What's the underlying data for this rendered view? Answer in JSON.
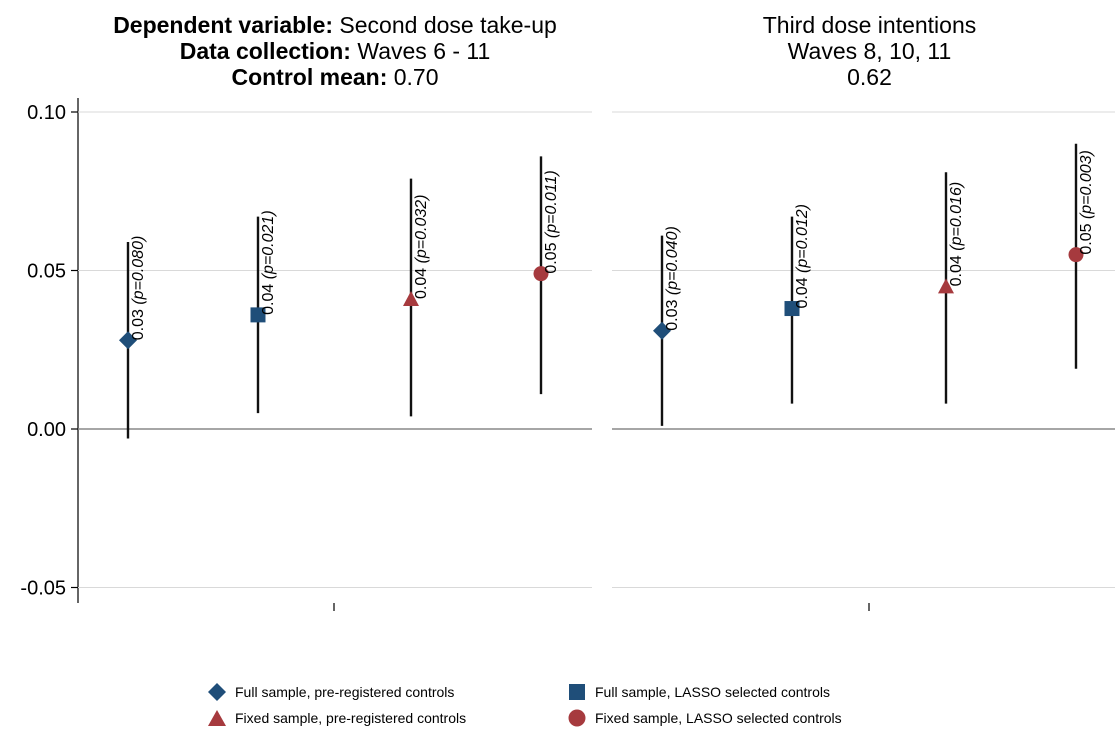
{
  "left_panel": {
    "title_line1_label": "Dependent variable:",
    "title_line1_value": "Second dose take-up",
    "title_line2_label": "Data collection:",
    "title_line2_value": "Waves 6 - 11",
    "title_line3_label": "Control mean:",
    "title_line3_value": "0.70"
  },
  "right_panel": {
    "title_line1": "Third dose intentions",
    "title_line2": "Waves 8, 10, 11",
    "title_line3": "0.62"
  },
  "legend": {
    "items": [
      {
        "label": "Full sample, pre-registered controls",
        "marker": "diamond",
        "color": "#1f4e79"
      },
      {
        "label": "Full sample, LASSO selected controls",
        "marker": "square",
        "color": "#1f4e79"
      },
      {
        "label": "Fixed sample, pre-registered controls",
        "marker": "triangle",
        "color": "#a63a3e"
      },
      {
        "label": "Fixed sample, LASSO selected controls",
        "marker": "circle",
        "color": "#a63a3e"
      }
    ]
  },
  "colors": {
    "navy": "#1f4e79",
    "maroon": "#a63a3e",
    "grid": "#d9d9d9",
    "zero_line": "#888888"
  },
  "chart_data": {
    "type": "scatter",
    "title": "",
    "xlabel": "",
    "ylabel": "",
    "ylim": [
      -0.055,
      0.105
    ],
    "yticks": [
      -0.05,
      0.0,
      0.05,
      0.1
    ],
    "ytick_labels": [
      "-0.05",
      "0.00",
      "0.05",
      "0.10"
    ],
    "grid": true,
    "legend_position": "bottom",
    "panels": [
      {
        "name": "Second dose take-up",
        "points": [
          {
            "series": "Full sample, pre-registered controls",
            "estimate": 0.028,
            "ci": [
              -0.003,
              0.059
            ],
            "label": "0.03",
            "p_label": "(p=0.080)"
          },
          {
            "series": "Full sample, LASSO selected controls",
            "estimate": 0.036,
            "ci": [
              0.005,
              0.067
            ],
            "label": "0.04",
            "p_label": "(p=0.021)"
          },
          {
            "series": "Fixed sample, pre-registered controls",
            "estimate": 0.041,
            "ci": [
              0.004,
              0.079
            ],
            "label": "0.04",
            "p_label": "(p=0.032)"
          },
          {
            "series": "Fixed sample, LASSO selected controls",
            "estimate": 0.049,
            "ci": [
              0.011,
              0.086
            ],
            "label": "0.05",
            "p_label": "(p=0.011)"
          }
        ]
      },
      {
        "name": "Third dose intentions",
        "points": [
          {
            "series": "Full sample, pre-registered controls",
            "estimate": 0.031,
            "ci": [
              0.001,
              0.061
            ],
            "label": "0.03",
            "p_label": "(p=0.040)"
          },
          {
            "series": "Full sample, LASSO selected controls",
            "estimate": 0.038,
            "ci": [
              0.008,
              0.067
            ],
            "label": "0.04",
            "p_label": "(p=0.012)"
          },
          {
            "series": "Fixed sample, pre-registered controls",
            "estimate": 0.045,
            "ci": [
              0.008,
              0.081
            ],
            "label": "0.04",
            "p_label": "(p=0.016)"
          },
          {
            "series": "Fixed sample, LASSO selected controls",
            "estimate": 0.055,
            "ci": [
              0.019,
              0.09
            ],
            "label": "0.05",
            "p_label": "(p=0.003)"
          }
        ]
      }
    ]
  }
}
